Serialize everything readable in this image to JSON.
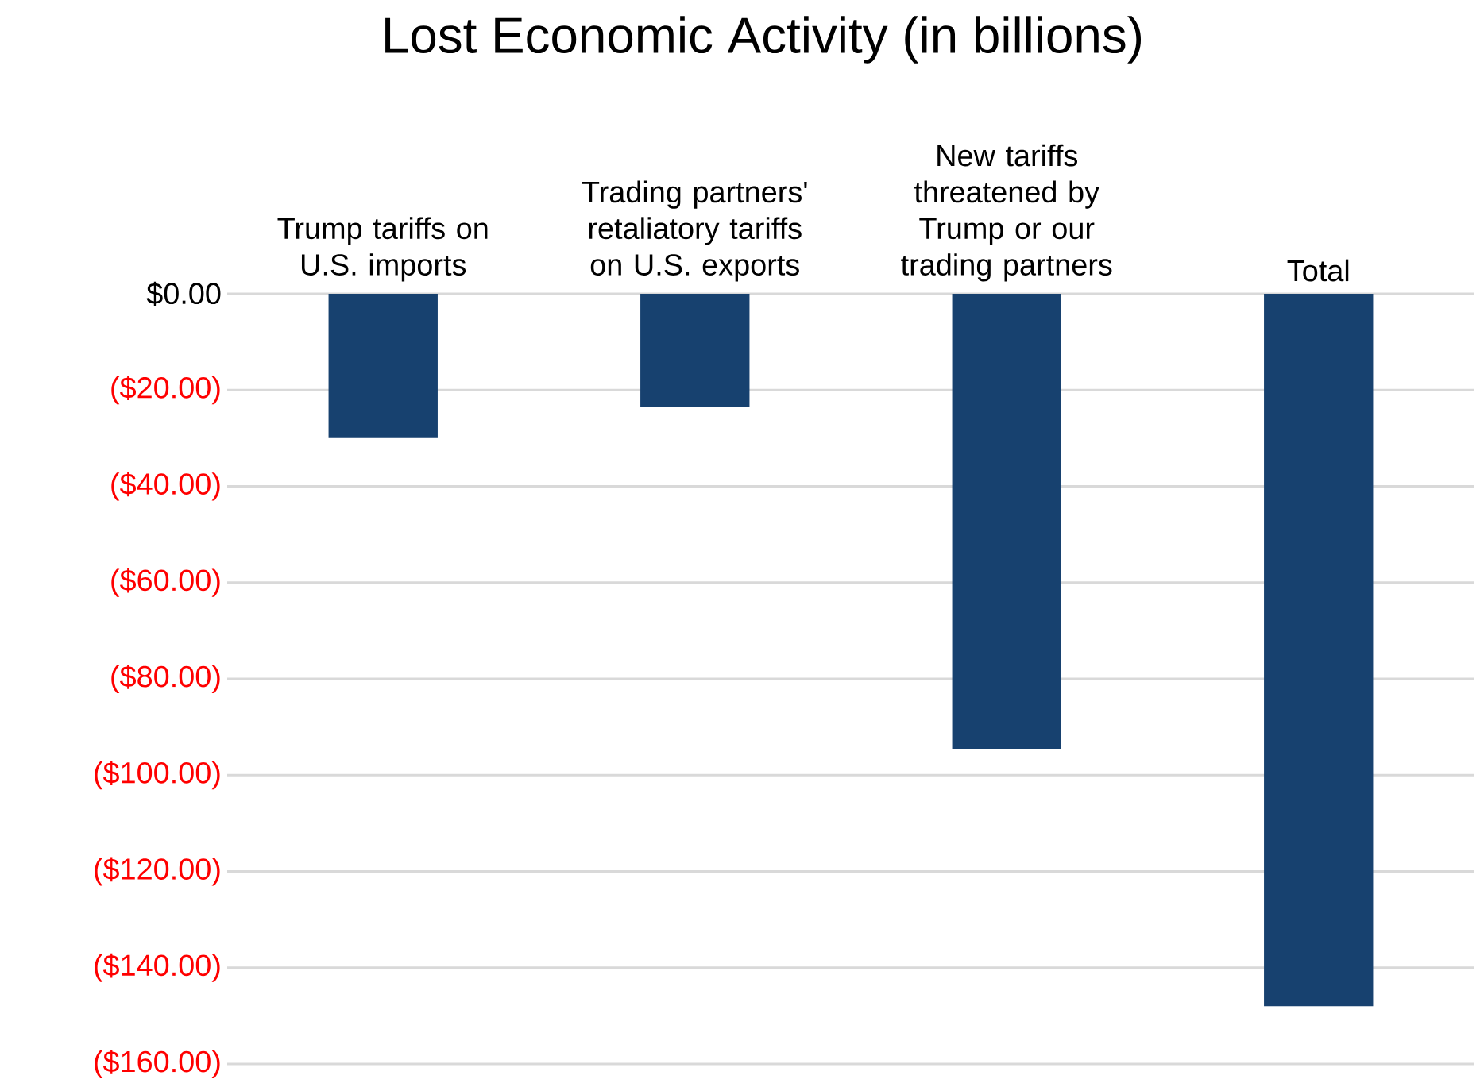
{
  "chart_data": {
    "type": "bar",
    "title": "Lost Economic Activity (in billions)",
    "categories": [
      "Trump tariffs on U.S. imports",
      "Trading partners' retaliatory tariffs on U.S. exports",
      "New tariffs threatened by Trump or our trading partners",
      "Total"
    ],
    "values": [
      -30,
      -23.5,
      -94.5,
      -148
    ],
    "color": "#17416f",
    "ylim": [
      -160,
      0
    ],
    "yticks": [
      {
        "value": 0,
        "label": "$0.00"
      },
      {
        "value": -20,
        "label": "($20.00)"
      },
      {
        "value": -40,
        "label": "($40.00)"
      },
      {
        "value": -60,
        "label": "($60.00)"
      },
      {
        "value": -80,
        "label": "($80.00)"
      },
      {
        "value": -100,
        "label": "($100.00)"
      },
      {
        "value": -120,
        "label": "($120.00)"
      },
      {
        "value": -140,
        "label": "($140.00)"
      },
      {
        "value": -160,
        "label": "($160.00)"
      }
    ],
    "grid": "y"
  }
}
